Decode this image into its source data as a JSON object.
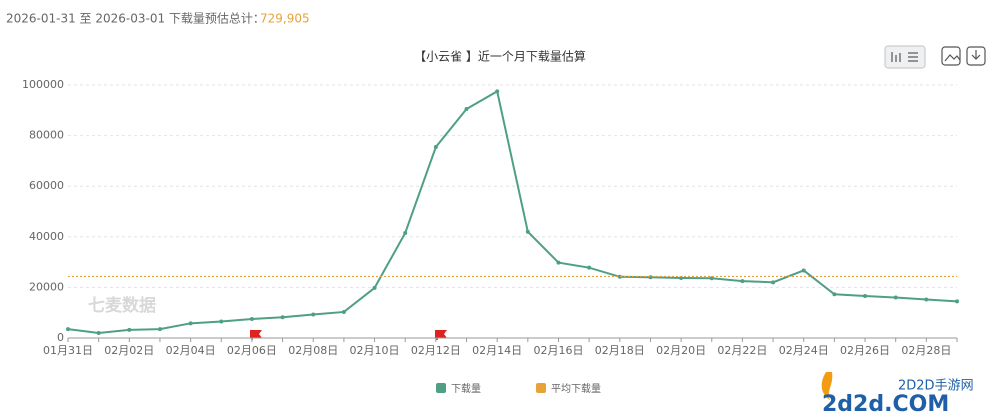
{
  "header": {
    "range": "2026-01-31 至 2026-03-01 下载量预估总计：",
    "total": "729,905"
  },
  "watermarks": [
    "七麦数据",
    "2D2D手游网",
    "2d2d.COM"
  ],
  "chart_data": {
    "type": "line",
    "title": "【小云雀 】近一个月下载量估算",
    "categories": [
      "01月31日",
      null,
      "02月02日",
      null,
      "02月04日",
      null,
      "02月06日",
      null,
      "02月08日",
      null,
      "02月10日",
      null,
      "02月12日",
      null,
      "02月14日",
      null,
      "02月16日",
      null,
      "02月18日",
      null,
      "02月20日",
      null,
      "02月22日",
      null,
      "02月24日",
      null,
      "02月26日",
      null,
      "02月28日",
      null
    ],
    "series": [
      {
        "name": "下载量",
        "color": "#4e9f86",
        "values": [
          3500,
          2000,
          3200,
          3500,
          5800,
          6500,
          7500,
          8200,
          9300,
          10300,
          19800,
          41500,
          75500,
          90500,
          97500,
          42000,
          29800,
          27800,
          24200,
          24000,
          23700,
          23600,
          22500,
          22000,
          26700,
          17300,
          16600,
          16000,
          15200,
          14500
        ]
      },
      {
        "name": "平均下载量",
        "color": "#e8a23a",
        "dashed": true,
        "values": [
          24330,
          24330,
          24330,
          24330,
          24330,
          24330,
          24330,
          24330,
          24330,
          24330,
          24330,
          24330,
          24330,
          24330,
          24330,
          24330,
          24330,
          24330,
          24330,
          24330,
          24330,
          24330,
          24330,
          24330,
          24330,
          24330,
          24330,
          24330,
          24330,
          24330
        ]
      }
    ],
    "ylim": [
      0,
      100000
    ],
    "yticks": [
      0,
      20000,
      40000,
      60000,
      80000,
      100000
    ],
    "grid": true,
    "legend": "bottom"
  }
}
